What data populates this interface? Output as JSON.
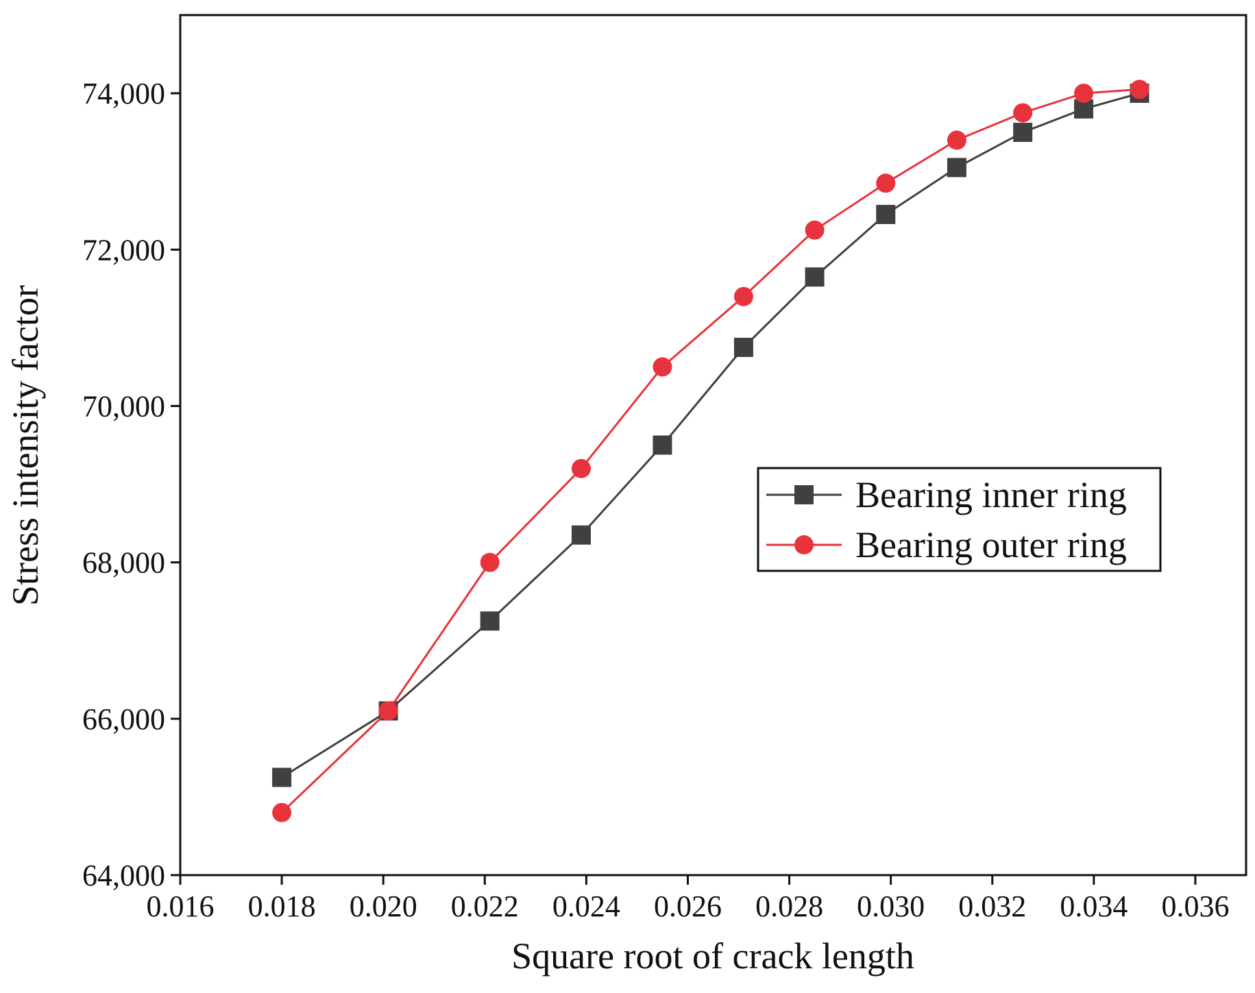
{
  "chart_data": {
    "type": "line",
    "xlabel": "Square root of crack length",
    "ylabel": "Stress intensity factor",
    "xlim": [
      0.016,
      0.037
    ],
    "ylim": [
      64000,
      75000
    ],
    "xticks": [
      "0.016",
      "0.018",
      "0.020",
      "0.022",
      "0.024",
      "0.026",
      "0.028",
      "0.030",
      "0.032",
      "0.034",
      "0.036"
    ],
    "yticks": [
      "64,000",
      "66,000",
      "68,000",
      "70,000",
      "72,000",
      "74,000"
    ],
    "grid": false,
    "legend_position": "center-right",
    "series": [
      {
        "name": "Bearing inner ring",
        "marker": "square",
        "color": "#404040",
        "x": [
          0.018,
          0.0201,
          0.0221,
          0.0239,
          0.0255,
          0.0271,
          0.0285,
          0.0299,
          0.0313,
          0.0326,
          0.0338,
          0.0349
        ],
        "y": [
          65250,
          66100,
          67250,
          68350,
          69500,
          70750,
          71650,
          72450,
          73050,
          73500,
          73800,
          74000
        ]
      },
      {
        "name": "Bearing outer ring",
        "marker": "circle",
        "color": "#e8323c",
        "x": [
          0.018,
          0.0201,
          0.0221,
          0.0239,
          0.0255,
          0.0271,
          0.0285,
          0.0299,
          0.0313,
          0.0326,
          0.0338,
          0.0349
        ],
        "y": [
          64800,
          66100,
          68000,
          69200,
          70500,
          71400,
          72250,
          72850,
          73400,
          73750,
          74000,
          74050
        ]
      }
    ]
  }
}
